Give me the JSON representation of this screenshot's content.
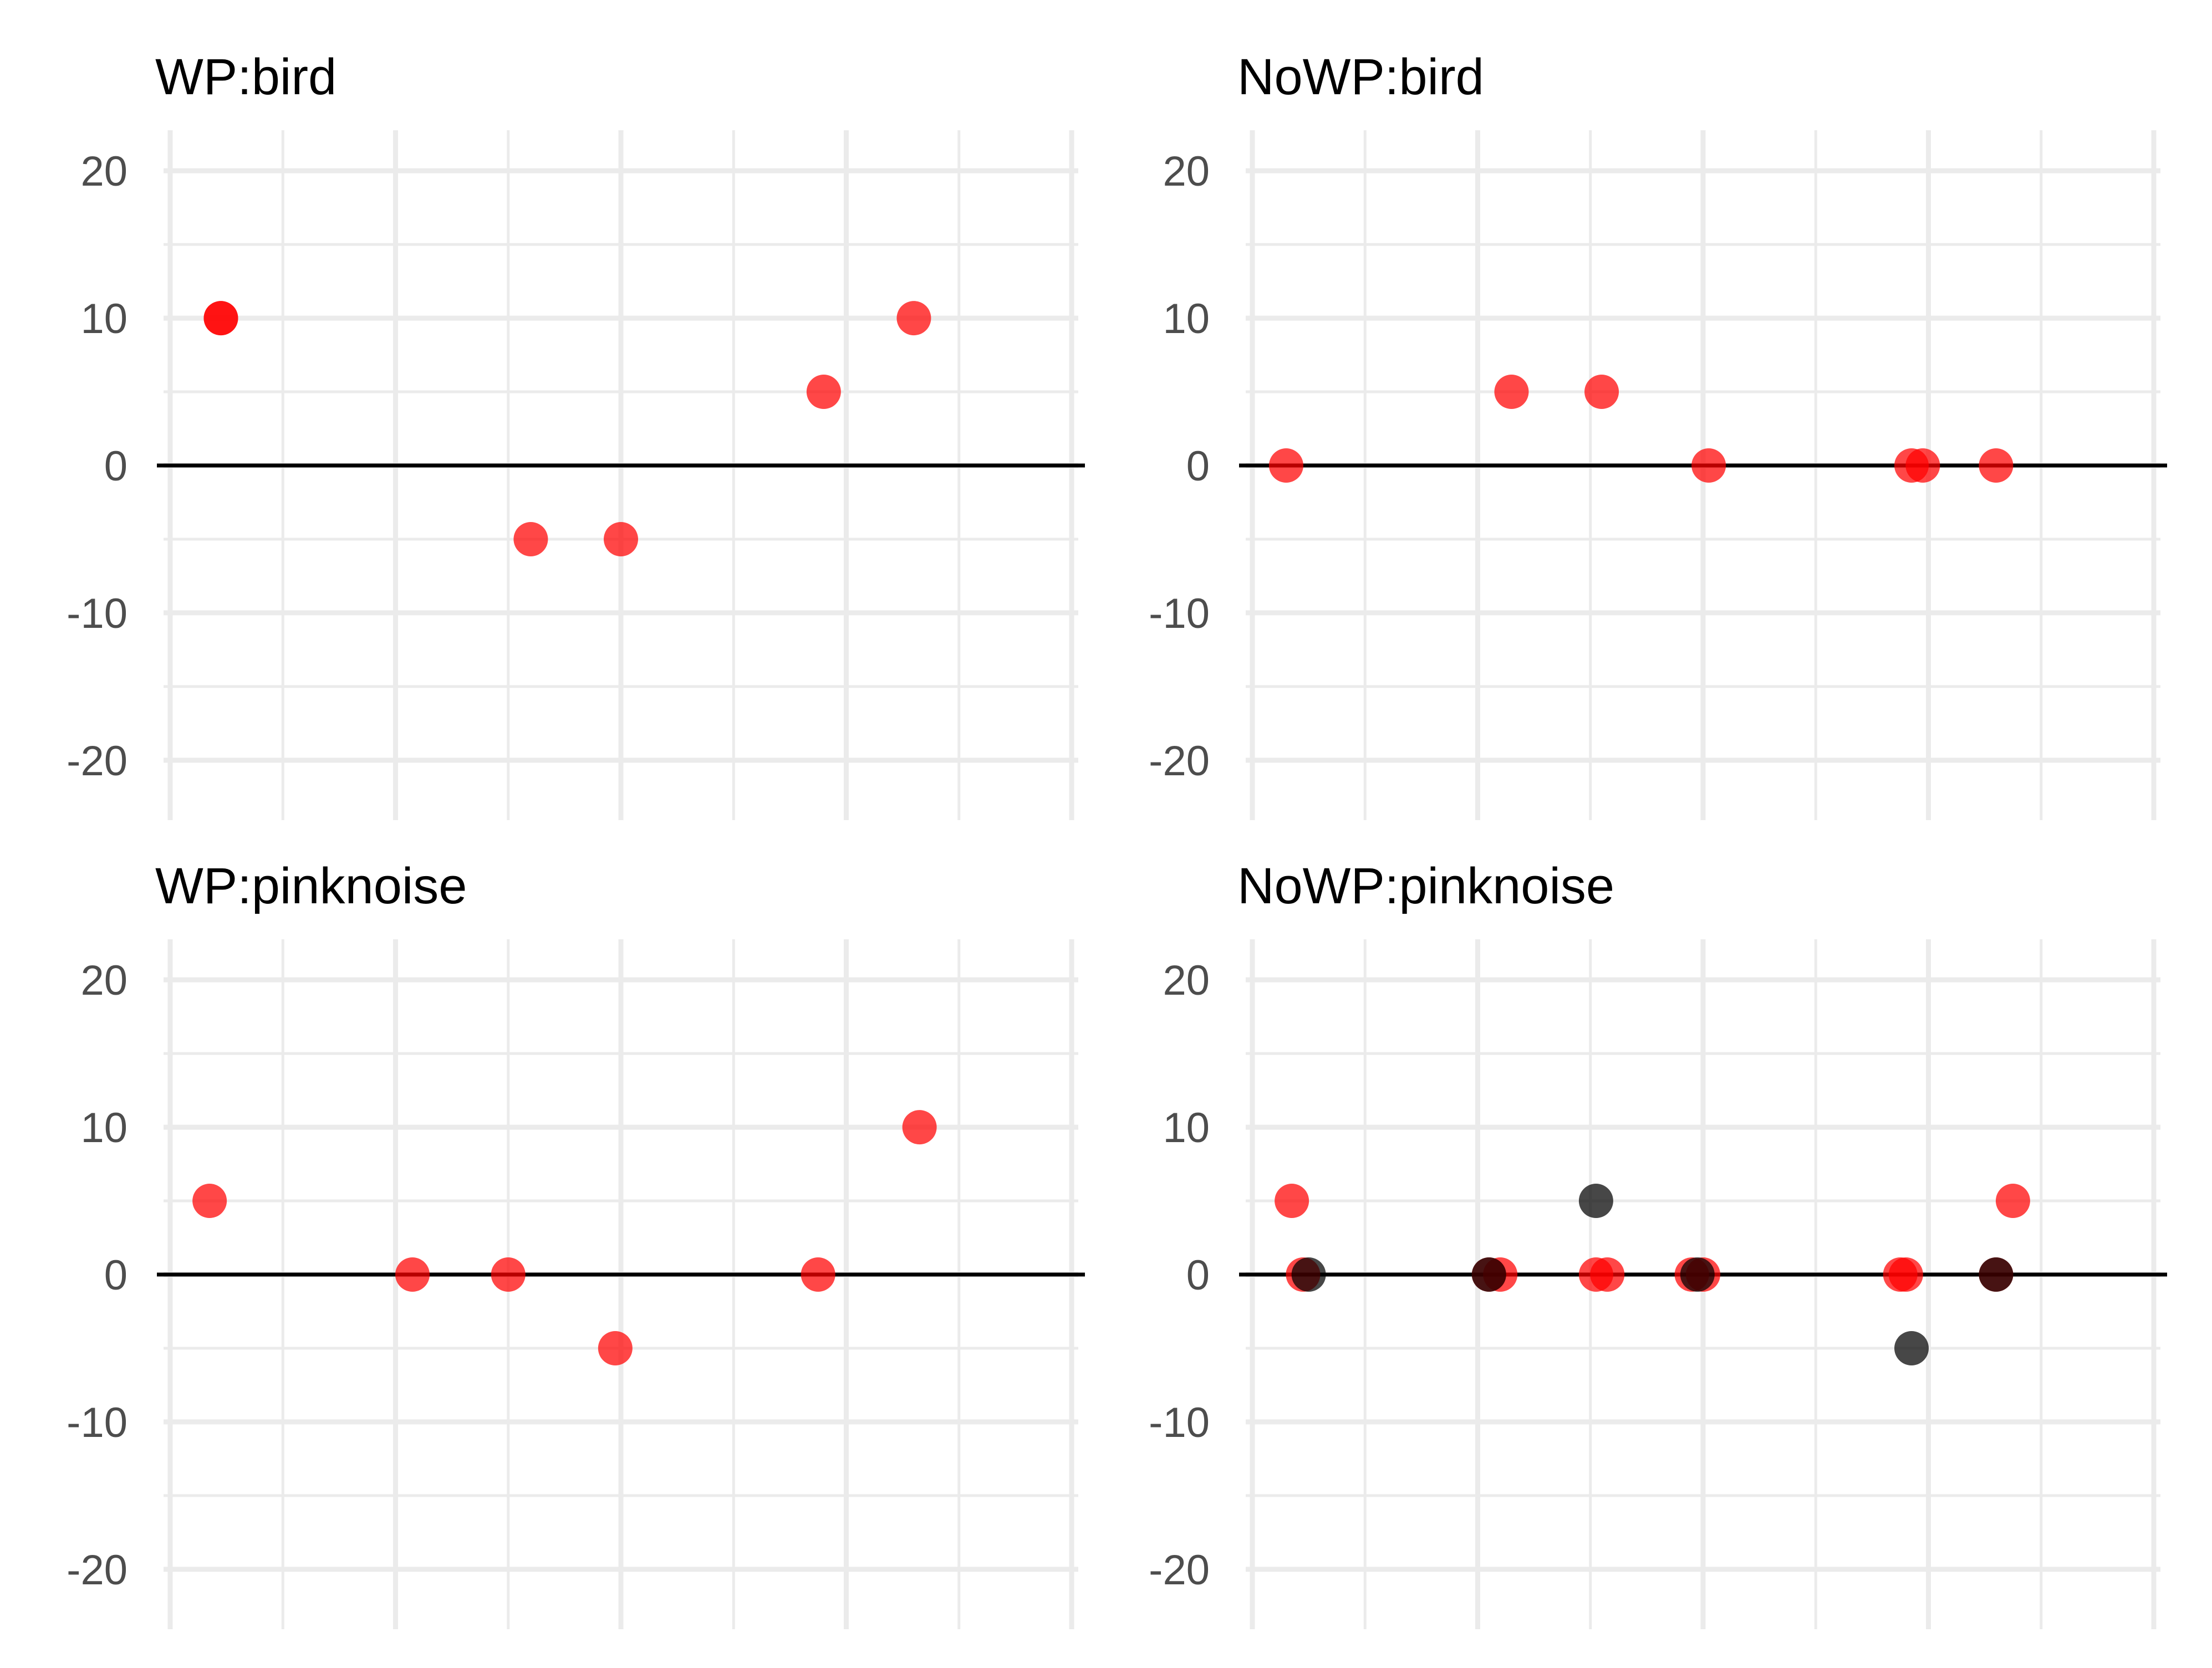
{
  "chart_data": [
    {
      "type": "scatter",
      "title": "WP:bird",
      "xlabel": "",
      "ylabel": "",
      "ylim": [
        -22,
        22
      ],
      "yticks": [
        -20,
        -10,
        0,
        10,
        20
      ],
      "xlim": [
        0,
        8
      ],
      "grid": true,
      "series": [
        {
          "color": "#ff0000",
          "points": [
            [
              0.45,
              10
            ],
            [
              0.45,
              10
            ],
            [
              3.2,
              -5
            ],
            [
              4.0,
              -5
            ],
            [
              5.8,
              5
            ],
            [
              6.6,
              10
            ]
          ]
        }
      ]
    },
    {
      "type": "scatter",
      "title": "NoWP:bird",
      "xlabel": "",
      "ylabel": "",
      "ylim": [
        -22,
        22
      ],
      "yticks": [
        -20,
        -10,
        0,
        10,
        20
      ],
      "xlim": [
        0,
        8
      ],
      "grid": true,
      "series": [
        {
          "color": "#ff0000",
          "points": [
            [
              0.3,
              0
            ],
            [
              2.3,
              5
            ],
            [
              3.1,
              5
            ],
            [
              4.05,
              0
            ],
            [
              5.85,
              0
            ],
            [
              5.95,
              0
            ],
            [
              6.6,
              0
            ]
          ]
        }
      ]
    },
    {
      "type": "scatter",
      "title": "WP:pinknoise",
      "xlabel": "",
      "ylabel": "",
      "ylim": [
        -22,
        22
      ],
      "yticks": [
        -20,
        -10,
        0,
        10,
        20
      ],
      "xlim": [
        0,
        8
      ],
      "grid": true,
      "series": [
        {
          "color": "#ff0000",
          "points": [
            [
              0.35,
              5
            ],
            [
              2.15,
              0
            ],
            [
              3.0,
              0
            ],
            [
              3.95,
              -5
            ],
            [
              5.75,
              0
            ],
            [
              6.65,
              10
            ]
          ]
        }
      ]
    },
    {
      "type": "scatter",
      "title": "NoWP:pinknoise",
      "xlabel": "",
      "ylabel": "",
      "ylim": [
        -22,
        22
      ],
      "yticks": [
        -20,
        -10,
        0,
        10,
        20
      ],
      "xlim": [
        0,
        8
      ],
      "grid": true,
      "series": [
        {
          "color": "#ff0000",
          "points": [
            [
              0.35,
              5
            ],
            [
              0.45,
              0
            ],
            [
              2.1,
              0
            ],
            [
              2.2,
              0
            ],
            [
              3.05,
              0
            ],
            [
              3.15,
              0
            ],
            [
              3.9,
              0
            ],
            [
              4.0,
              0
            ],
            [
              5.75,
              0
            ],
            [
              5.8,
              0
            ],
            [
              6.6,
              0
            ],
            [
              6.75,
              5
            ]
          ]
        },
        {
          "color": "#000000",
          "points": [
            [
              0.5,
              0
            ],
            [
              2.1,
              0
            ],
            [
              3.05,
              5
            ],
            [
              3.95,
              0
            ],
            [
              5.85,
              -5
            ],
            [
              6.6,
              0
            ]
          ]
        }
      ]
    }
  ]
}
